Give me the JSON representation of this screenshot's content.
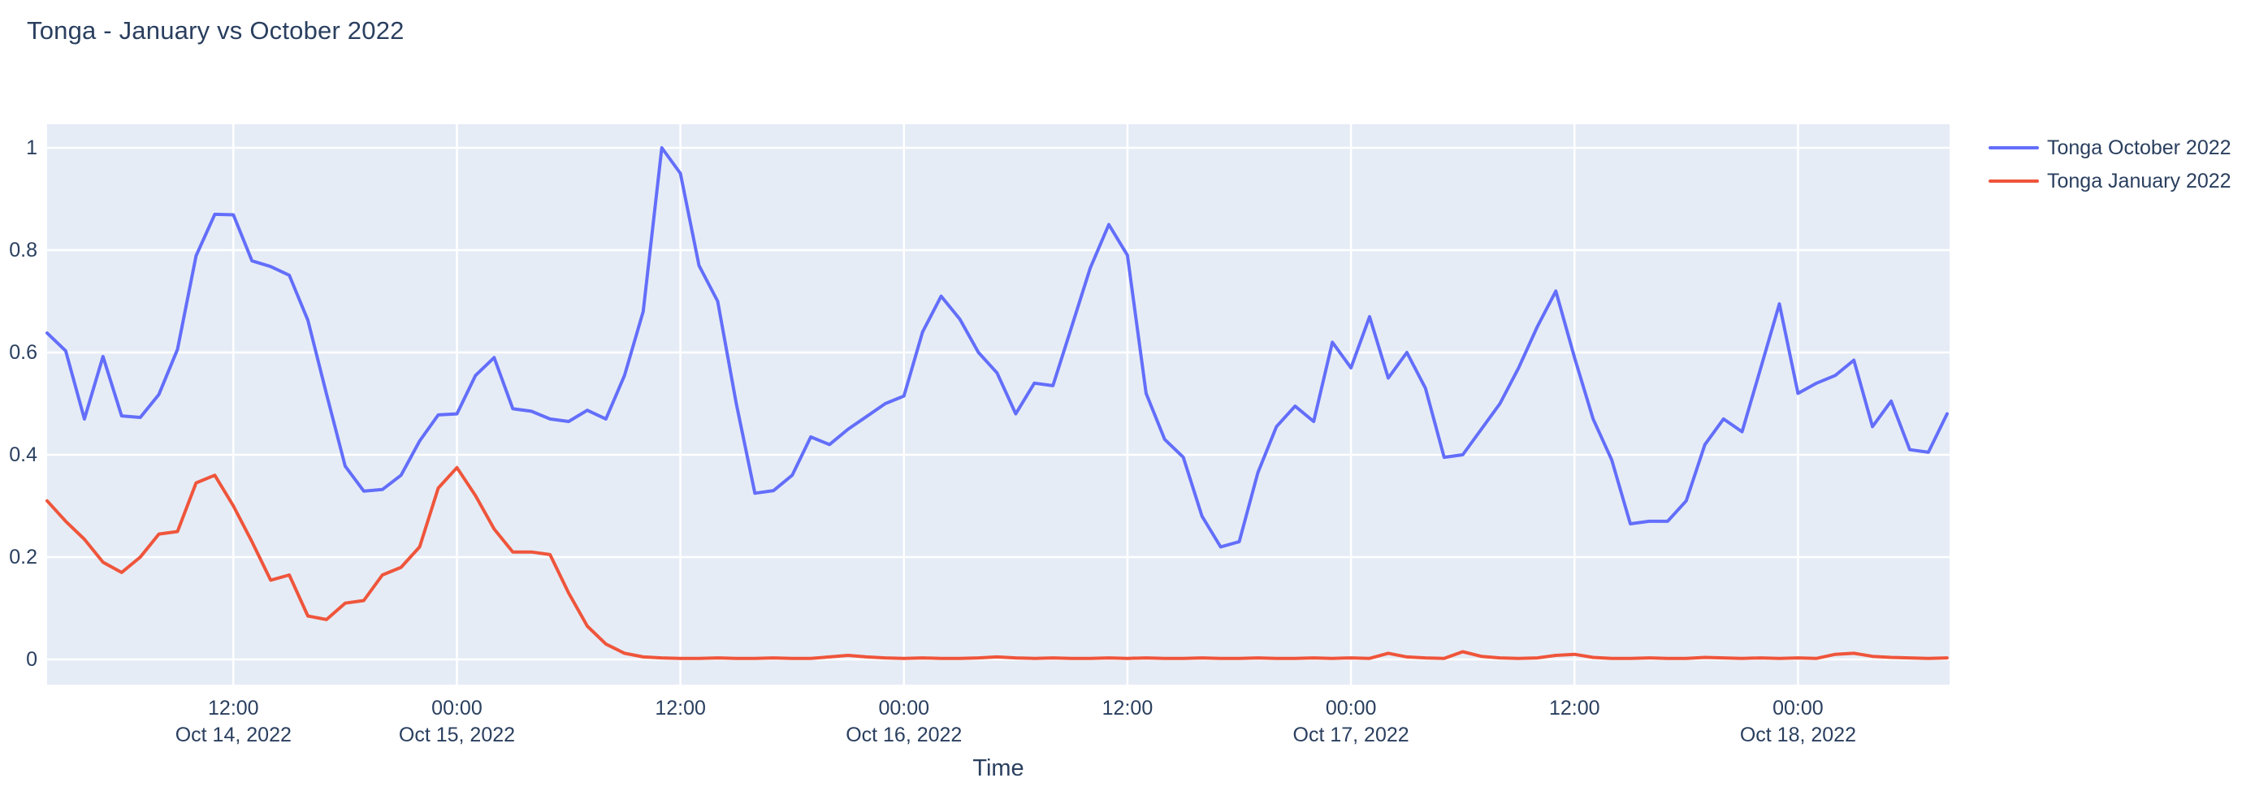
{
  "chart": {
    "title": "Tonga - January vs October 2022",
    "xlabel": "Time"
  },
  "colors": {
    "paper_bg": "#FFFFFF",
    "plot_bg": "#E5ECF6",
    "grid": "#FFFFFF",
    "text": "#2A3F5F",
    "series_october": "#636EFA",
    "series_january": "#EF553B"
  },
  "chart_data": {
    "type": "line",
    "title": "Tonga - January vs October 2022",
    "xlabel": "Time",
    "ylabel": "",
    "ylim": [
      0,
      1
    ],
    "grid": true,
    "legend_position": "right",
    "x_unit": "hours since Oct 14, 2022 00:00",
    "x_range_hours": [
      2,
      104.2
    ],
    "x_hours": [
      2,
      3,
      4,
      5,
      6,
      7,
      8,
      9,
      10,
      11,
      12,
      13,
      14,
      15,
      16,
      17,
      18,
      19,
      20,
      21,
      22,
      23,
      24,
      25,
      26,
      27,
      28,
      29,
      30,
      31,
      32,
      33,
      34,
      35,
      36,
      37,
      38,
      39,
      40,
      41,
      42,
      43,
      44,
      45,
      46,
      47,
      48,
      49,
      50,
      51,
      52,
      53,
      54,
      55,
      56,
      57,
      58,
      59,
      60,
      61,
      62,
      63,
      64,
      65,
      66,
      67,
      68,
      69,
      70,
      71,
      72,
      73,
      74,
      75,
      76,
      77,
      78,
      79,
      80,
      81,
      82,
      83,
      84,
      85,
      86,
      87,
      88,
      89,
      90,
      91,
      92,
      93,
      94,
      95,
      96,
      97,
      98,
      99,
      100,
      101,
      102,
      103,
      104
    ],
    "x_ticks": [
      {
        "hour": 12,
        "line1": "12:00",
        "line2": "Oct 14, 2022"
      },
      {
        "hour": 24,
        "line1": "00:00",
        "line2": "Oct 15, 2022"
      },
      {
        "hour": 36,
        "line1": "12:00",
        "line2": ""
      },
      {
        "hour": 48,
        "line1": "00:00",
        "line2": "Oct 16, 2022"
      },
      {
        "hour": 60,
        "line1": "12:00",
        "line2": ""
      },
      {
        "hour": 72,
        "line1": "00:00",
        "line2": "Oct 17, 2022"
      },
      {
        "hour": 84,
        "line1": "12:00",
        "line2": ""
      },
      {
        "hour": 96,
        "line1": "00:00",
        "line2": "Oct 18, 2022"
      }
    ],
    "y_ticks": [
      {
        "value": 0,
        "label": "0"
      },
      {
        "value": 0.2,
        "label": "0.2"
      },
      {
        "value": 0.4,
        "label": "0.4"
      },
      {
        "value": 0.6,
        "label": "0.6"
      },
      {
        "value": 0.8,
        "label": "0.8"
      },
      {
        "value": 1,
        "label": "1"
      }
    ],
    "series": [
      {
        "name": "Tonga October 2022",
        "color": "#636EFA",
        "values": [
          0.638,
          0.603,
          0.47,
          0.592,
          0.476,
          0.473,
          0.518,
          0.606,
          0.789,
          0.87,
          0.869,
          0.779,
          0.768,
          0.751,
          0.663,
          0.519,
          0.378,
          0.329,
          0.332,
          0.36,
          0.427,
          0.478,
          0.48,
          0.555,
          0.59,
          0.49,
          0.485,
          0.47,
          0.465,
          0.487,
          0.47,
          0.555,
          0.68,
          1.0,
          0.95,
          0.77,
          0.7,
          0.5,
          0.325,
          0.33,
          0.36,
          0.435,
          0.42,
          0.45,
          0.475,
          0.5,
          0.515,
          0.64,
          0.71,
          0.665,
          0.6,
          0.56,
          0.48,
          0.54,
          0.535,
          0.65,
          0.765,
          0.85,
          0.79,
          0.52,
          0.43,
          0.395,
          0.28,
          0.22,
          0.23,
          0.365,
          0.455,
          0.495,
          0.465,
          0.62,
          0.57,
          0.67,
          0.55,
          0.6,
          0.53,
          0.395,
          0.4,
          0.45,
          0.5,
          0.57,
          0.65,
          0.72,
          0.59,
          0.47,
          0.39,
          0.265,
          0.27,
          0.27,
          0.31,
          0.42,
          0.47,
          0.445,
          0.57,
          0.695,
          0.52,
          0.54,
          0.555,
          0.585,
          0.455,
          0.505,
          0.41,
          0.405,
          0.48
        ]
      },
      {
        "name": "Tonga January 2022",
        "color": "#EF553B",
        "values": [
          0.31,
          0.27,
          0.235,
          0.19,
          0.17,
          0.2,
          0.245,
          0.25,
          0.345,
          0.36,
          0.3,
          0.23,
          0.155,
          0.165,
          0.085,
          0.078,
          0.11,
          0.115,
          0.165,
          0.18,
          0.22,
          0.335,
          0.375,
          0.32,
          0.255,
          0.21,
          0.21,
          0.205,
          0.13,
          0.065,
          0.03,
          0.012,
          0.005,
          0.003,
          0.002,
          0.002,
          0.003,
          0.002,
          0.002,
          0.003,
          0.002,
          0.002,
          0.005,
          0.008,
          0.005,
          0.003,
          0.002,
          0.003,
          0.002,
          0.002,
          0.003,
          0.005,
          0.003,
          0.002,
          0.003,
          0.002,
          0.002,
          0.003,
          0.002,
          0.003,
          0.002,
          0.002,
          0.003,
          0.002,
          0.002,
          0.003,
          0.002,
          0.002,
          0.003,
          0.002,
          0.003,
          0.002,
          0.012,
          0.005,
          0.003,
          0.002,
          0.015,
          0.006,
          0.003,
          0.002,
          0.003,
          0.008,
          0.01,
          0.004,
          0.002,
          0.002,
          0.003,
          0.002,
          0.002,
          0.004,
          0.003,
          0.002,
          0.003,
          0.002,
          0.003,
          0.002,
          0.01,
          0.012,
          0.006,
          0.004,
          0.003,
          0.002,
          0.003
        ]
      }
    ]
  }
}
